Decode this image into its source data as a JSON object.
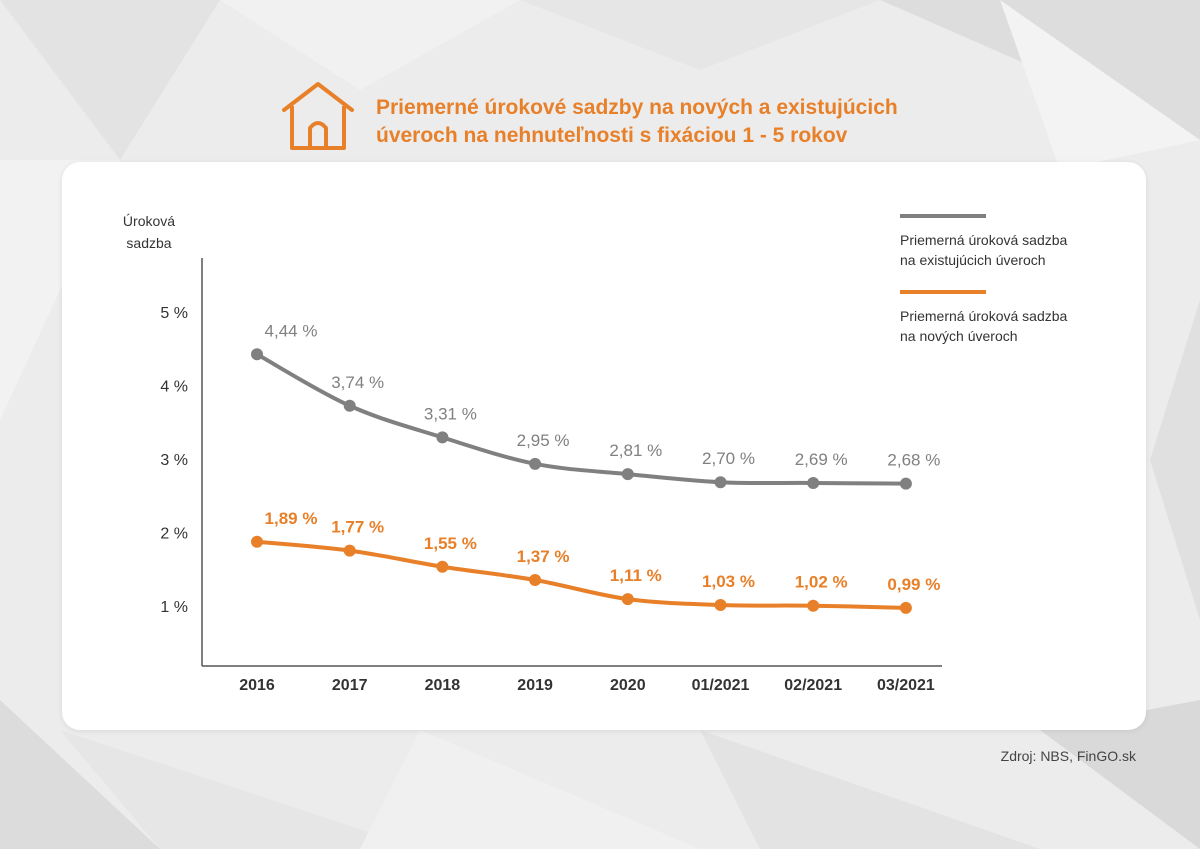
{
  "title": {
    "line1": "Priemerné úrokové sadzby na nových a existujúcich",
    "line2": "úveroch na nehnuteľnosti s fixáciou 1 - 5 rokov"
  },
  "source": "Zdroj: NBS, FinGO.sk",
  "colors": {
    "accent": "#e8802a",
    "existing": "#808080",
    "new": "#e8802a",
    "axis": "#555555"
  },
  "icons": {
    "header": "house-icon"
  },
  "chart_data": {
    "type": "line",
    "ylabel_line1": "Úroková",
    "ylabel_line2": "sadzba",
    "x": [
      "2016",
      "2017",
      "2018",
      "2019",
      "2020",
      "01/2021",
      "02/2021",
      "03/2021"
    ],
    "yticks": [
      "1 %",
      "2 %",
      "3 %",
      "4 %",
      "5 %"
    ],
    "ytick_values": [
      1,
      2,
      3,
      4,
      5
    ],
    "ylim": [
      0.2,
      5.75
    ],
    "grid": false,
    "legend_position": "top-right",
    "series": [
      {
        "name": "Priemerná úroková sadzba na existujúcich úveroch",
        "legend_line1": "Priemerná úroková sadzba",
        "legend_line2": "na existujúcich úveroch",
        "color": "#808080",
        "values": [
          4.44,
          3.74,
          3.31,
          2.95,
          2.81,
          2.7,
          2.69,
          2.68
        ],
        "labels": [
          "4,44 %",
          "3,74 %",
          "3,31 %",
          "2,95 %",
          "2,81 %",
          "2,70 %",
          "2,69 %",
          "2,68 %"
        ]
      },
      {
        "name": "Priemerná úroková sadzba na nových úveroch",
        "legend_line1": "Priemerná úroková sadzba",
        "legend_line2": "na nových úveroch",
        "color": "#e8802a",
        "values": [
          1.89,
          1.77,
          1.55,
          1.37,
          1.11,
          1.03,
          1.02,
          0.99
        ],
        "labels": [
          "1,89 %",
          "1,77 %",
          "1,55 %",
          "1,37 %",
          "1,11 %",
          "1,03 %",
          "1,02 %",
          "0,99 %"
        ]
      }
    ]
  }
}
